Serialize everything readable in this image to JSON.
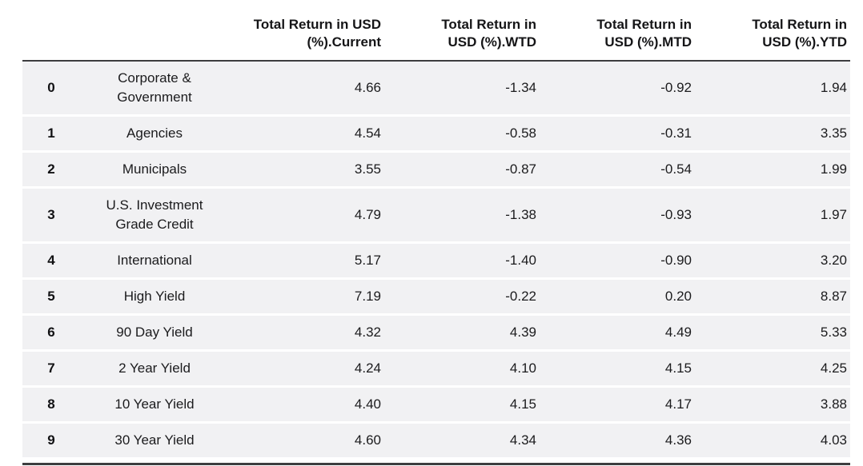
{
  "table": {
    "headers": [
      {
        "line1": "Total Return in USD",
        "line2": "(%).Current"
      },
      {
        "line1": "Total Return in",
        "line2": "USD (%).WTD"
      },
      {
        "line1": "Total Return in",
        "line2": "USD (%).MTD"
      },
      {
        "line1": "Total Return in",
        "line2": "USD (%).YTD"
      }
    ],
    "rows": [
      {
        "index": "0",
        "label": "Corporate & Government",
        "current": "4.66",
        "wtd": "-1.34",
        "mtd": "-0.92",
        "ytd": "1.94"
      },
      {
        "index": "1",
        "label": "Agencies",
        "current": "4.54",
        "wtd": "-0.58",
        "mtd": "-0.31",
        "ytd": "3.35"
      },
      {
        "index": "2",
        "label": "Municipals",
        "current": "3.55",
        "wtd": "-0.87",
        "mtd": "-0.54",
        "ytd": "1.99"
      },
      {
        "index": "3",
        "label": "U.S. Investment Grade Credit",
        "current": "4.79",
        "wtd": "-1.38",
        "mtd": "-0.93",
        "ytd": "1.97"
      },
      {
        "index": "4",
        "label": "International",
        "current": "5.17",
        "wtd": "-1.40",
        "mtd": "-0.90",
        "ytd": "3.20"
      },
      {
        "index": "5",
        "label": "High Yield",
        "current": "7.19",
        "wtd": "-0.22",
        "mtd": "0.20",
        "ytd": "8.87"
      },
      {
        "index": "6",
        "label": "90 Day Yield",
        "current": "4.32",
        "wtd": "4.39",
        "mtd": "4.49",
        "ytd": "5.33"
      },
      {
        "index": "7",
        "label": "2 Year Yield",
        "current": "4.24",
        "wtd": "4.10",
        "mtd": "4.15",
        "ytd": "4.25"
      },
      {
        "index": "8",
        "label": "10 Year Yield",
        "current": "4.40",
        "wtd": "4.15",
        "mtd": "4.17",
        "ytd": "3.88"
      },
      {
        "index": "9",
        "label": "30 Year Yield",
        "current": "4.60",
        "wtd": "4.34",
        "mtd": "4.36",
        "ytd": "4.03"
      }
    ],
    "colors": {
      "row_background": "#f1f1f3",
      "rule": "#3d3d3f",
      "text": "#1b1b1d"
    }
  }
}
